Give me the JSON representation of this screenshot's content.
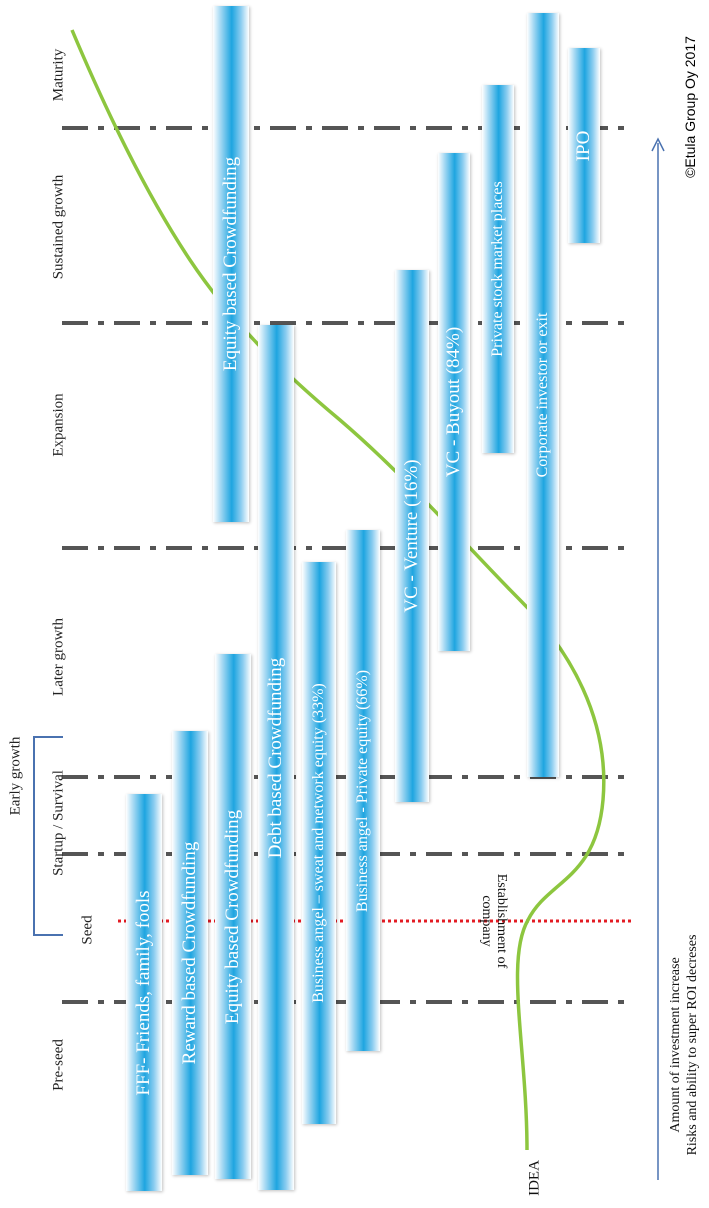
{
  "stages": [
    {
      "label": "Pre-seed"
    },
    {
      "label": "Seed"
    },
    {
      "label": "Startup / Survival"
    },
    {
      "label": "Later growth"
    },
    {
      "label": "Expansion"
    },
    {
      "label": "Sustained growth"
    },
    {
      "label": "Maturity"
    }
  ],
  "early_growth_label": "Early growth",
  "bars": [
    {
      "label": "FFF- Friends, family, fools"
    },
    {
      "label": "Reward based Crowdfunding"
    },
    {
      "label": "Equity based Crowdfunding"
    },
    {
      "label": "Debt based Crowdfunding"
    },
    {
      "label": "Business angel – sweat and network equity (33%)"
    },
    {
      "label": "Business angel - Private equity (66%)"
    },
    {
      "label": "VC - Venture (16%)"
    },
    {
      "label": "VC - Buyout (84%)"
    },
    {
      "label": "Equity  based Crowdfunding"
    },
    {
      "label": "Private stock market places"
    },
    {
      "label": "Corporate investor or exit"
    },
    {
      "label": "IPO"
    }
  ],
  "idea_label": "IDEA",
  "establishment_label_line1": "Establishment of",
  "establishment_label_line2": "company",
  "axis_line1": "Amount of investment increase",
  "axis_line2": "Risks and ability to super ROI decreses",
  "copyright": "©Etula Group Oy 2017",
  "colors": {
    "bar_core": "#1ea5e0",
    "curve": "#8dc63f",
    "establishment_line": "#e31b23",
    "divider": "#555555",
    "axis": "#4a72b0"
  }
}
